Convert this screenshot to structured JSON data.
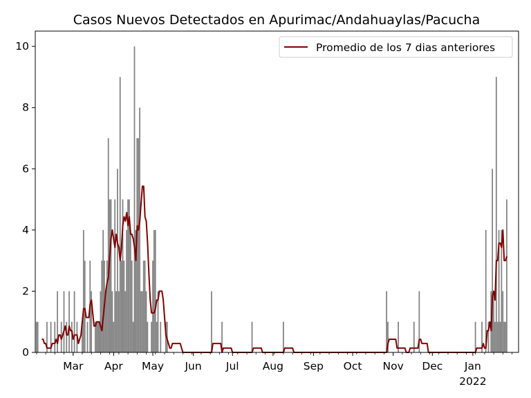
{
  "chart_data": {
    "type": "bar",
    "title": "Casos Nuevos Detectados en Apurimac/Andahuaylas/Pacucha",
    "xlabel": "",
    "ylabel": "",
    "ylim": [
      0,
      10.5
    ],
    "xlim": [
      "2021-01-31",
      "2022-02-05"
    ],
    "grid": false,
    "legend_position": "top-right",
    "x_ticks": [
      {
        "date": "2021-03-01",
        "label": "Mar"
      },
      {
        "date": "2021-04-01",
        "label": "Apr"
      },
      {
        "date": "2021-05-01",
        "label": "May"
      },
      {
        "date": "2021-06-01",
        "label": "Jun"
      },
      {
        "date": "2021-07-01",
        "label": "Jul"
      },
      {
        "date": "2021-08-01",
        "label": "Aug"
      },
      {
        "date": "2021-09-01",
        "label": "Sep"
      },
      {
        "date": "2021-10-01",
        "label": "Oct"
      },
      {
        "date": "2021-11-01",
        "label": "Nov"
      },
      {
        "date": "2021-12-01",
        "label": "Dec"
      },
      {
        "date": "2022-01-01",
        "label": "Jan"
      }
    ],
    "x_year_label": {
      "date": "2022-01-01",
      "label": "2022"
    },
    "y_ticks": [
      0,
      2,
      4,
      6,
      8,
      10
    ],
    "bar_color": "#808080",
    "line_color": "#800000",
    "series": [
      {
        "kind": "bar",
        "points": [
          [
            "2021-02-01",
            1
          ],
          [
            "2021-02-02",
            1
          ],
          [
            "2021-02-09",
            1
          ],
          [
            "2021-02-12",
            1
          ],
          [
            "2021-02-15",
            1
          ],
          [
            "2021-02-17",
            2
          ],
          [
            "2021-02-20",
            1
          ],
          [
            "2021-02-22",
            2
          ],
          [
            "2021-02-24",
            1
          ],
          [
            "2021-02-26",
            2
          ],
          [
            "2021-02-28",
            1
          ],
          [
            "2021-03-02",
            2
          ],
          [
            "2021-03-04",
            1
          ],
          [
            "2021-03-08",
            1
          ],
          [
            "2021-03-09",
            4
          ],
          [
            "2021-03-10",
            3
          ],
          [
            "2021-03-12",
            1
          ],
          [
            "2021-03-14",
            3
          ],
          [
            "2021-03-15",
            2
          ],
          [
            "2021-03-18",
            1
          ],
          [
            "2021-03-19",
            1
          ],
          [
            "2021-03-20",
            1
          ],
          [
            "2021-03-21",
            1
          ],
          [
            "2021-03-22",
            2
          ],
          [
            "2021-03-23",
            3
          ],
          [
            "2021-03-24",
            4
          ],
          [
            "2021-03-25",
            3
          ],
          [
            "2021-03-26",
            2
          ],
          [
            "2021-03-27",
            3
          ],
          [
            "2021-03-28",
            7
          ],
          [
            "2021-03-29",
            5
          ],
          [
            "2021-03-30",
            5
          ],
          [
            "2021-03-31",
            2
          ],
          [
            "2021-04-01",
            1
          ],
          [
            "2021-04-02",
            5
          ],
          [
            "2021-04-03",
            2
          ],
          [
            "2021-04-04",
            6
          ],
          [
            "2021-04-05",
            2
          ],
          [
            "2021-04-06",
            9
          ],
          [
            "2021-04-07",
            3
          ],
          [
            "2021-04-08",
            5
          ],
          [
            "2021-04-09",
            3
          ],
          [
            "2021-04-10",
            2
          ],
          [
            "2021-04-11",
            4
          ],
          [
            "2021-04-12",
            5
          ],
          [
            "2021-04-13",
            5
          ],
          [
            "2021-04-14",
            4
          ],
          [
            "2021-04-15",
            3
          ],
          [
            "2021-04-16",
            1
          ],
          [
            "2021-04-17",
            10
          ],
          [
            "2021-04-18",
            4
          ],
          [
            "2021-04-19",
            7
          ],
          [
            "2021-04-20",
            7
          ],
          [
            "2021-04-21",
            8
          ],
          [
            "2021-04-22",
            2
          ],
          [
            "2021-04-23",
            2
          ],
          [
            "2021-04-24",
            3
          ],
          [
            "2021-04-25",
            3
          ],
          [
            "2021-04-26",
            2
          ],
          [
            "2021-04-27",
            1
          ],
          [
            "2021-04-30",
            1
          ],
          [
            "2021-05-01",
            3
          ],
          [
            "2021-05-02",
            4
          ],
          [
            "2021-05-03",
            4
          ],
          [
            "2021-05-04",
            1
          ],
          [
            "2021-05-05",
            2
          ],
          [
            "2021-05-07",
            1
          ],
          [
            "2021-05-11",
            1
          ],
          [
            "2021-05-12",
            1
          ],
          [
            "2021-06-15",
            2
          ],
          [
            "2021-06-23",
            1
          ],
          [
            "2021-07-16",
            1
          ],
          [
            "2021-08-09",
            1
          ],
          [
            "2021-10-27",
            2
          ],
          [
            "2021-10-28",
            1
          ],
          [
            "2021-11-05",
            1
          ],
          [
            "2021-11-17",
            1
          ],
          [
            "2021-11-21",
            2
          ],
          [
            "2022-01-03",
            1
          ],
          [
            "2022-01-08",
            1
          ],
          [
            "2022-01-11",
            4
          ],
          [
            "2022-01-13",
            1
          ],
          [
            "2022-01-15",
            2
          ],
          [
            "2022-01-16",
            6
          ],
          [
            "2022-01-17",
            2
          ],
          [
            "2022-01-18",
            1
          ],
          [
            "2022-01-19",
            9
          ],
          [
            "2022-01-20",
            1
          ],
          [
            "2022-01-21",
            4
          ],
          [
            "2022-01-22",
            1
          ],
          [
            "2022-01-23",
            4
          ],
          [
            "2022-01-24",
            2
          ],
          [
            "2022-01-25",
            1
          ],
          [
            "2022-01-26",
            1
          ],
          [
            "2022-01-27",
            5
          ]
        ]
      },
      {
        "kind": "line",
        "name": "Promedio de los 7 dias anteriores",
        "points": [
          [
            "2021-02-05",
            0.43
          ],
          [
            "2021-02-06",
            0.43
          ],
          [
            "2021-02-07",
            0.29
          ],
          [
            "2021-02-08",
            0.29
          ],
          [
            "2021-02-09",
            0.14
          ],
          [
            "2021-02-10",
            0.14
          ],
          [
            "2021-02-11",
            0.14
          ],
          [
            "2021-02-12",
            0.14
          ],
          [
            "2021-02-13",
            0.29
          ],
          [
            "2021-02-14",
            0.29
          ],
          [
            "2021-02-15",
            0.29
          ],
          [
            "2021-02-16",
            0.43
          ],
          [
            "2021-02-17",
            0.29
          ],
          [
            "2021-02-18",
            0.57
          ],
          [
            "2021-02-19",
            0.57
          ],
          [
            "2021-02-20",
            0.43
          ],
          [
            "2021-02-21",
            0.57
          ],
          [
            "2021-02-22",
            0.71
          ],
          [
            "2021-02-23",
            0.86
          ],
          [
            "2021-02-24",
            0.57
          ],
          [
            "2021-02-25",
            0.57
          ],
          [
            "2021-02-26",
            0.86
          ],
          [
            "2021-02-27",
            0.71
          ],
          [
            "2021-02-28",
            0.71
          ],
          [
            "2021-03-01",
            0.43
          ],
          [
            "2021-03-02",
            0.57
          ],
          [
            "2021-03-03",
            0.57
          ],
          [
            "2021-03-04",
            0.57
          ],
          [
            "2021-03-05",
            0.29
          ],
          [
            "2021-03-06",
            0.43
          ],
          [
            "2021-03-07",
            0.57
          ],
          [
            "2021-03-08",
            1.0
          ],
          [
            "2021-03-09",
            1.43
          ],
          [
            "2021-03-10",
            1.43
          ],
          [
            "2021-03-11",
            1.14
          ],
          [
            "2021-03-12",
            1.14
          ],
          [
            "2021-03-13",
            1.14
          ],
          [
            "2021-03-14",
            1.57
          ],
          [
            "2021-03-15",
            1.71
          ],
          [
            "2021-03-16",
            1.29
          ],
          [
            "2021-03-17",
            0.86
          ],
          [
            "2021-03-18",
            0.86
          ],
          [
            "2021-03-19",
            1.0
          ],
          [
            "2021-03-20",
            1.0
          ],
          [
            "2021-03-21",
            1.0
          ],
          [
            "2021-03-22",
            0.86
          ],
          [
            "2021-03-23",
            0.71
          ],
          [
            "2021-03-24",
            1.14
          ],
          [
            "2021-03-25",
            1.57
          ],
          [
            "2021-03-26",
            2.0
          ],
          [
            "2021-03-27",
            2.29
          ],
          [
            "2021-03-28",
            2.43
          ],
          [
            "2021-03-29",
            3.14
          ],
          [
            "2021-03-30",
            3.71
          ],
          [
            "2021-03-31",
            4.0
          ],
          [
            "2021-04-01",
            3.71
          ],
          [
            "2021-04-02",
            3.43
          ],
          [
            "2021-04-03",
            3.86
          ],
          [
            "2021-04-04",
            3.57
          ],
          [
            "2021-04-05",
            3.43
          ],
          [
            "2021-04-06",
            3.0
          ],
          [
            "2021-04-07",
            3.43
          ],
          [
            "2021-04-08",
            4.14
          ],
          [
            "2021-04-09",
            4.43
          ],
          [
            "2021-04-10",
            4.29
          ],
          [
            "2021-04-11",
            4.57
          ],
          [
            "2021-04-12",
            4.14
          ],
          [
            "2021-04-13",
            4.43
          ],
          [
            "2021-04-14",
            3.86
          ],
          [
            "2021-04-15",
            3.86
          ],
          [
            "2021-04-16",
            3.71
          ],
          [
            "2021-04-17",
            3.43
          ],
          [
            "2021-04-18",
            3.0
          ],
          [
            "2021-04-19",
            4.14
          ],
          [
            "2021-04-20",
            4.0
          ],
          [
            "2021-04-21",
            4.29
          ],
          [
            "2021-04-22",
            4.86
          ],
          [
            "2021-04-23",
            5.43
          ],
          [
            "2021-04-24",
            5.43
          ],
          [
            "2021-04-25",
            4.43
          ],
          [
            "2021-04-26",
            4.29
          ],
          [
            "2021-04-27",
            3.57
          ],
          [
            "2021-04-28",
            2.57
          ],
          [
            "2021-04-29",
            1.71
          ],
          [
            "2021-04-30",
            1.29
          ],
          [
            "2021-05-01",
            1.29
          ],
          [
            "2021-05-02",
            1.29
          ],
          [
            "2021-05-03",
            1.43
          ],
          [
            "2021-05-04",
            1.71
          ],
          [
            "2021-05-05",
            1.71
          ],
          [
            "2021-05-06",
            2.0
          ],
          [
            "2021-05-07",
            2.0
          ],
          [
            "2021-05-08",
            2.0
          ],
          [
            "2021-05-09",
            1.71
          ],
          [
            "2021-05-10",
            1.14
          ],
          [
            "2021-05-11",
            0.57
          ],
          [
            "2021-05-12",
            0.43
          ],
          [
            "2021-05-13",
            0.29
          ],
          [
            "2021-05-14",
            0.14
          ],
          [
            "2021-05-15",
            0.14
          ],
          [
            "2021-05-16",
            0.29
          ],
          [
            "2021-05-17",
            0.29
          ],
          [
            "2021-05-18",
            0.29
          ],
          [
            "2021-05-19",
            0.29
          ],
          [
            "2021-05-20",
            0.29
          ],
          [
            "2021-05-21",
            0.29
          ],
          [
            "2021-05-22",
            0.29
          ],
          [
            "2021-05-23",
            0.14
          ],
          [
            "2021-05-24",
            0.0
          ],
          [
            "2021-06-15",
            0.0
          ],
          [
            "2021-06-16",
            0.29
          ],
          [
            "2021-06-22",
            0.29
          ],
          [
            "2021-06-23",
            0.0
          ],
          [
            "2021-06-24",
            0.14
          ],
          [
            "2021-06-30",
            0.14
          ],
          [
            "2021-07-01",
            0.0
          ],
          [
            "2021-07-16",
            0.0
          ],
          [
            "2021-07-17",
            0.14
          ],
          [
            "2021-07-23",
            0.14
          ],
          [
            "2021-07-24",
            0.0
          ],
          [
            "2021-08-09",
            0.0
          ],
          [
            "2021-08-10",
            0.14
          ],
          [
            "2021-08-16",
            0.14
          ],
          [
            "2021-08-17",
            0.0
          ],
          [
            "2021-10-27",
            0.0
          ],
          [
            "2021-10-28",
            0.29
          ],
          [
            "2021-10-29",
            0.43
          ],
          [
            "2021-11-03",
            0.43
          ],
          [
            "2021-11-04",
            0.14
          ],
          [
            "2021-11-10",
            0.14
          ],
          [
            "2021-11-11",
            0.0
          ],
          [
            "2021-11-13",
            0.0
          ],
          [
            "2021-11-14",
            0.14
          ],
          [
            "2021-11-20",
            0.14
          ],
          [
            "2021-11-21",
            0.43
          ],
          [
            "2021-11-22",
            0.43
          ],
          [
            "2021-11-23",
            0.29
          ],
          [
            "2021-11-27",
            0.29
          ],
          [
            "2021-11-28",
            0.0
          ],
          [
            "2022-01-03",
            0.0
          ],
          [
            "2022-01-04",
            0.14
          ],
          [
            "2022-01-08",
            0.14
          ],
          [
            "2022-01-09",
            0.29
          ],
          [
            "2022-01-10",
            0.14
          ],
          [
            "2022-01-11",
            0.14
          ],
          [
            "2022-01-12",
            0.71
          ],
          [
            "2022-01-13",
            0.71
          ],
          [
            "2022-01-14",
            1.0
          ],
          [
            "2022-01-15",
            0.71
          ],
          [
            "2022-01-16",
            1.86
          ],
          [
            "2022-01-17",
            2.0
          ],
          [
            "2022-01-18",
            1.71
          ],
          [
            "2022-01-19",
            3.0
          ],
          [
            "2022-01-20",
            3.0
          ],
          [
            "2022-01-21",
            3.57
          ],
          [
            "2022-01-22",
            3.57
          ],
          [
            "2022-01-23",
            3.43
          ],
          [
            "2022-01-24",
            4.0
          ],
          [
            "2022-01-25",
            3.0
          ],
          [
            "2022-01-26",
            3.0
          ],
          [
            "2022-01-27",
            3.14
          ]
        ]
      }
    ]
  }
}
